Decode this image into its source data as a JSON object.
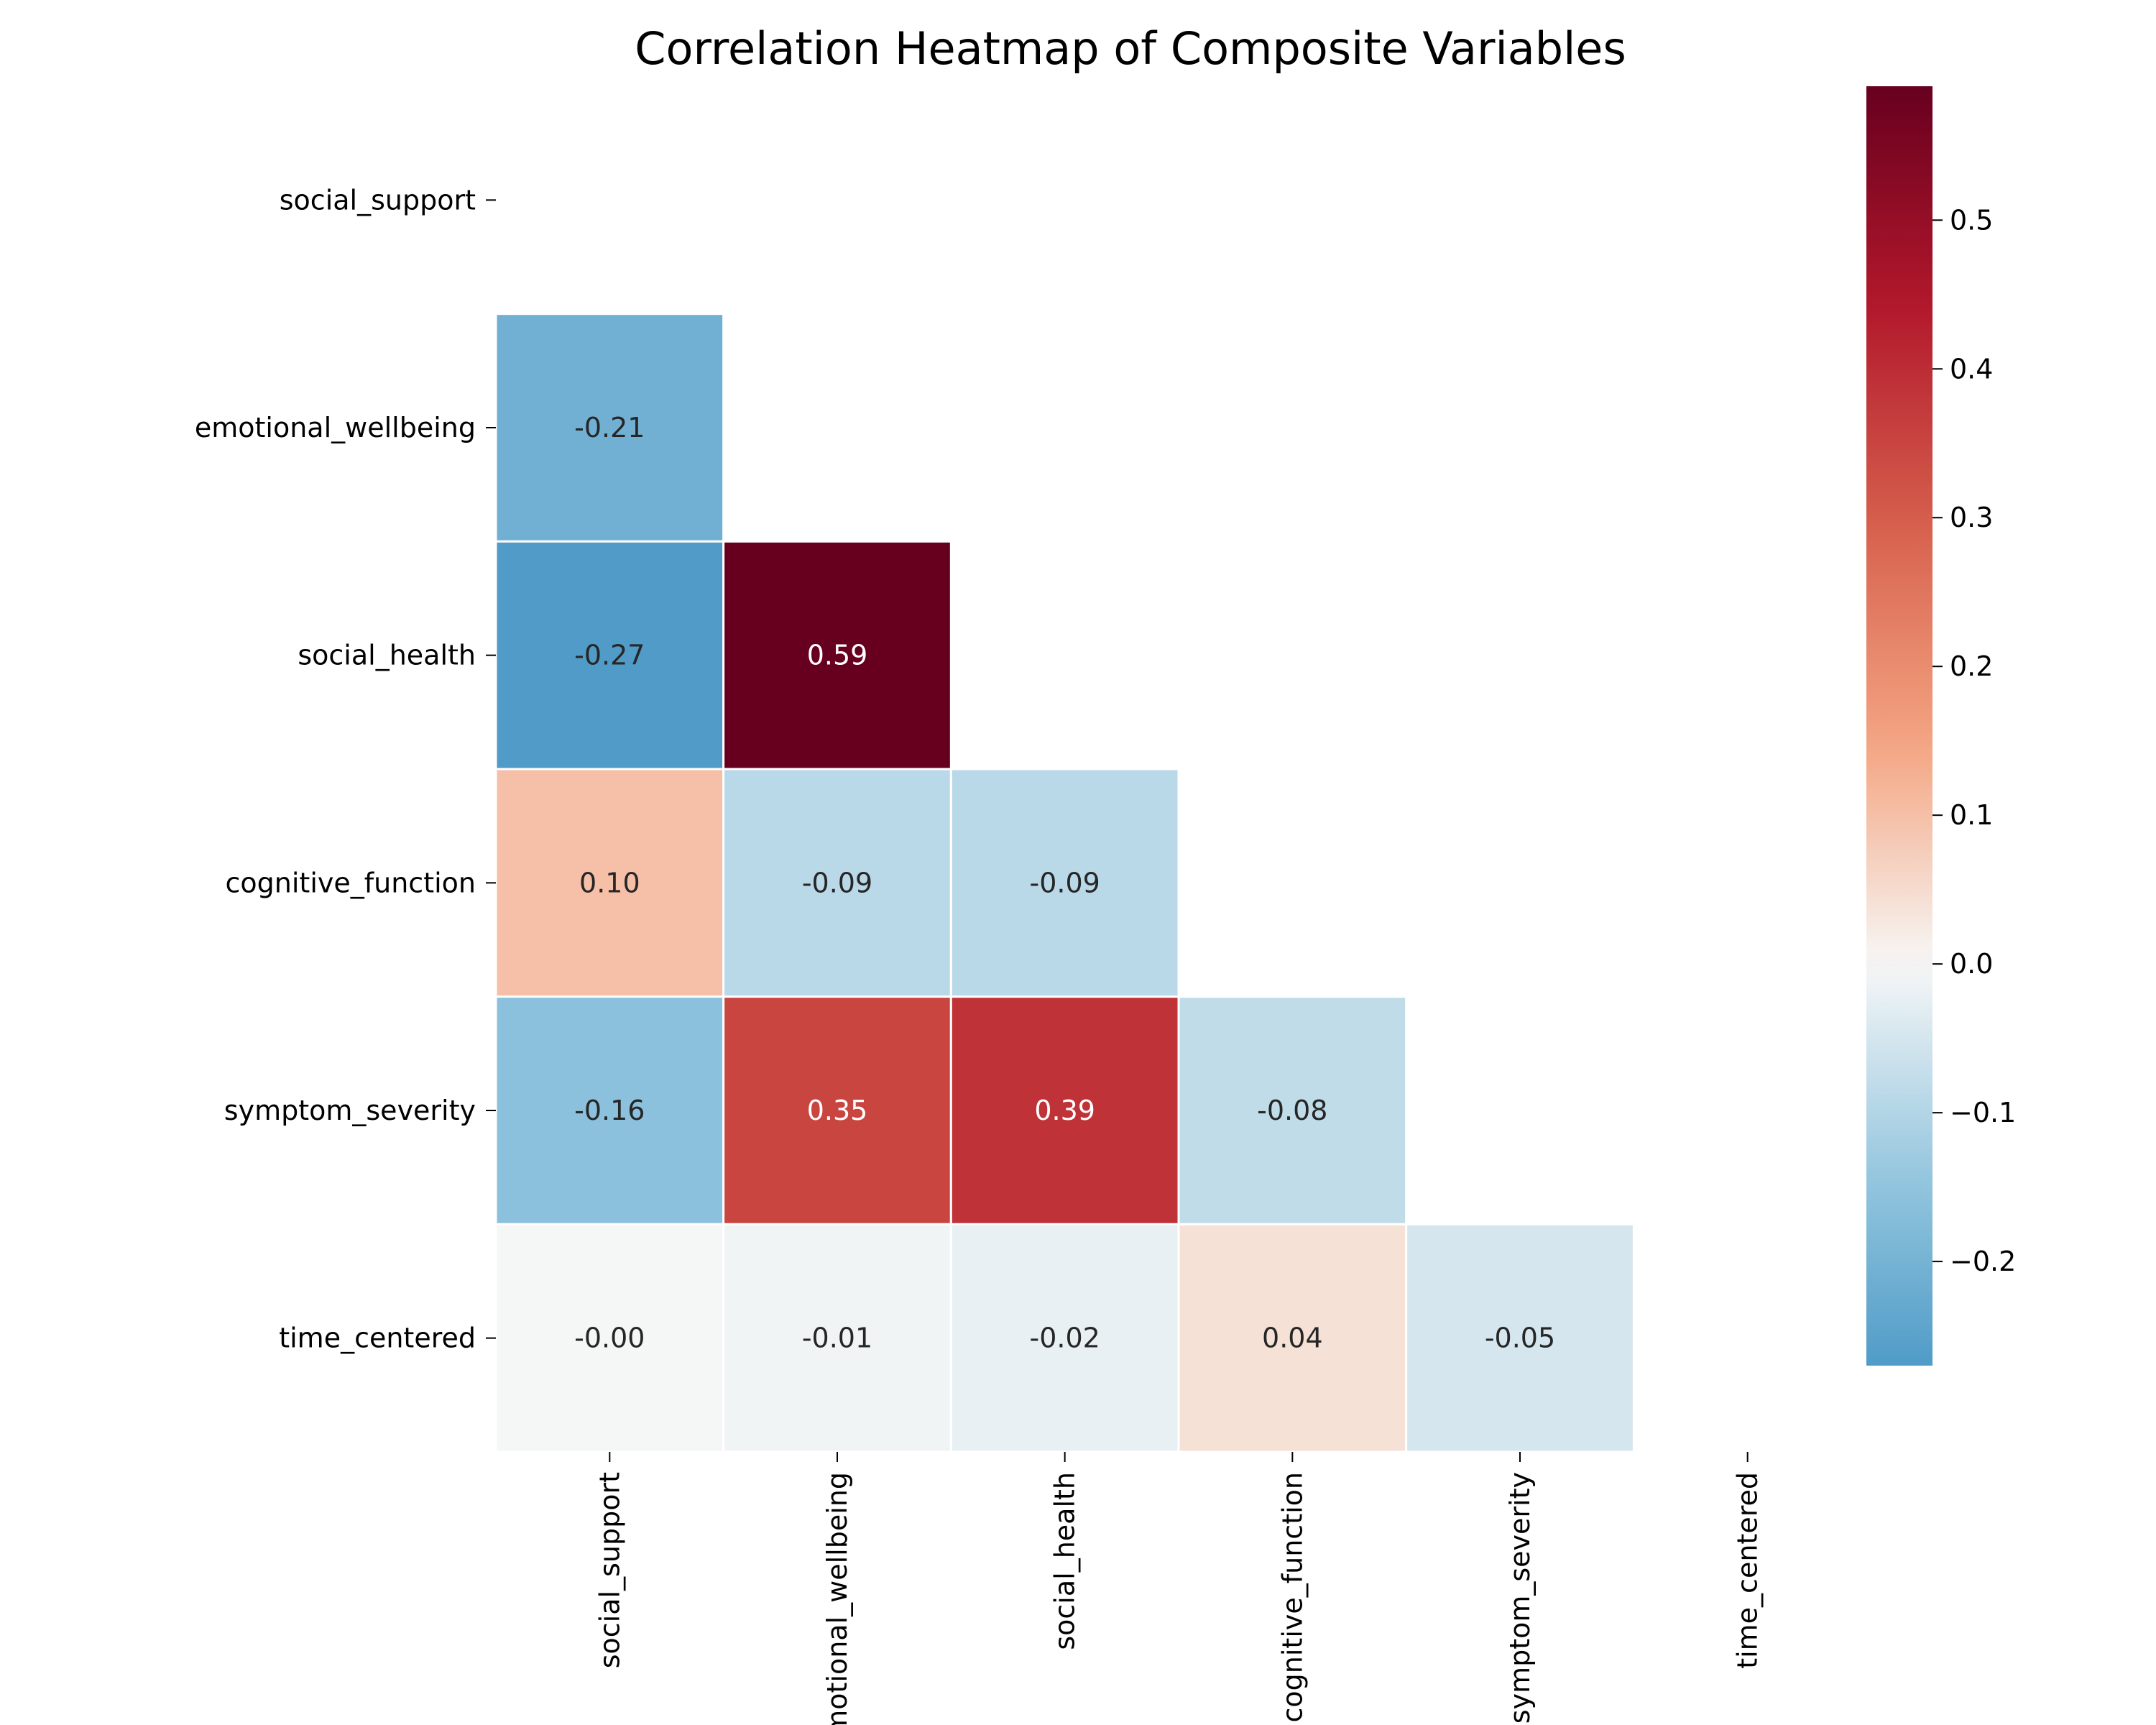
{
  "chart_data": {
    "type": "heatmap",
    "title": "Correlation Heatmap of Composite Variables",
    "variables": [
      "social_support",
      "emotional_wellbeing",
      "social_health",
      "cognitive_function",
      "symptom_severity",
      "time_centered"
    ],
    "mask": "upper triangle and diagonal",
    "cells": [
      {
        "row": "emotional_wellbeing",
        "col": "social_support",
        "value": -0.21,
        "label": "-0.21"
      },
      {
        "row": "social_health",
        "col": "social_support",
        "value": -0.27,
        "label": "-0.27"
      },
      {
        "row": "social_health",
        "col": "emotional_wellbeing",
        "value": 0.59,
        "label": "0.59"
      },
      {
        "row": "cognitive_function",
        "col": "social_support",
        "value": 0.1,
        "label": "0.10"
      },
      {
        "row": "cognitive_function",
        "col": "emotional_wellbeing",
        "value": -0.09,
        "label": "-0.09"
      },
      {
        "row": "cognitive_function",
        "col": "social_health",
        "value": -0.09,
        "label": "-0.09"
      },
      {
        "row": "symptom_severity",
        "col": "social_support",
        "value": -0.16,
        "label": "-0.16"
      },
      {
        "row": "symptom_severity",
        "col": "emotional_wellbeing",
        "value": 0.35,
        "label": "0.35"
      },
      {
        "row": "symptom_severity",
        "col": "social_health",
        "value": 0.39,
        "label": "0.39"
      },
      {
        "row": "symptom_severity",
        "col": "cognitive_function",
        "value": -0.08,
        "label": "-0.08"
      },
      {
        "row": "time_centered",
        "col": "social_support",
        "value": -0.003,
        "label": "-0.00"
      },
      {
        "row": "time_centered",
        "col": "emotional_wellbeing",
        "value": -0.01,
        "label": "-0.01"
      },
      {
        "row": "time_centered",
        "col": "social_health",
        "value": -0.02,
        "label": "-0.02"
      },
      {
        "row": "time_centered",
        "col": "cognitive_function",
        "value": 0.04,
        "label": "0.04"
      },
      {
        "row": "time_centered",
        "col": "symptom_severity",
        "value": -0.05,
        "label": "-0.05"
      }
    ],
    "colorbar": {
      "colormap": "RdBu_r",
      "range": [
        -0.27,
        0.59
      ],
      "ticks": [
        -0.2,
        -0.1,
        0.0,
        0.1,
        0.2,
        0.3,
        0.4,
        0.5
      ],
      "tick_labels": [
        "−0.2",
        "−0.1",
        "0.0",
        "0.1",
        "0.2",
        "0.3",
        "0.4",
        "0.5"
      ]
    },
    "xlabel": "",
    "ylabel": ""
  }
}
